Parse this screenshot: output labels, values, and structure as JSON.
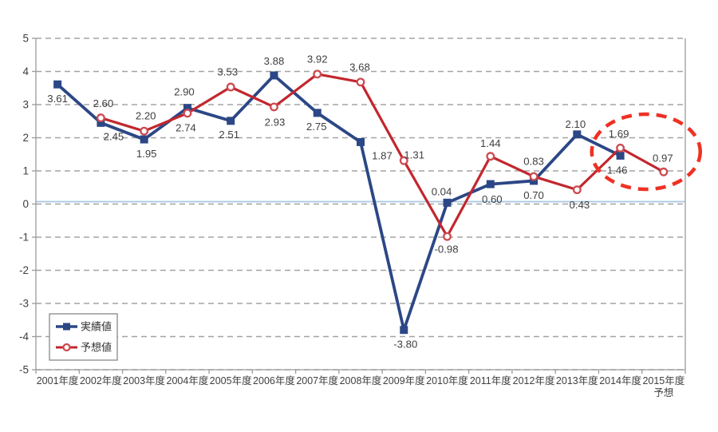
{
  "chart_data": {
    "type": "line",
    "title": "",
    "categories": [
      "2001年度",
      "2002年度",
      "2003年度",
      "2004年度",
      "2005年度",
      "2006年度",
      "2007年度",
      "2008年度",
      "2009年度",
      "2010年度",
      "2011年度",
      "2012年度",
      "2013年度",
      "2014年度",
      "2015年度\n予想"
    ],
    "ylim": [
      -5,
      5
    ],
    "ytick_step": 1,
    "ytick_labels": [
      "5",
      "4",
      "3",
      "2",
      "1",
      "0",
      "-1",
      "-2",
      "-3",
      "-4",
      "-5"
    ],
    "grid": "horizontal-dashed",
    "legend_position": "inside-bottom-left",
    "colors": {
      "actual": "#2c4786",
      "forecast": "#c2272e",
      "forecast_marker_ring": "#cc4a50",
      "zero_line": "#a9c7e6",
      "gridline": "#a3a3a3",
      "axis_border": "#9b9b9b",
      "label_text": "#3f3f3f",
      "highlight_ellipse": "#ee3124"
    },
    "series": [
      {
        "name": "実績値",
        "marker": "filled-square",
        "color_key": "actual",
        "points": [
          {
            "category": "2001年度",
            "value": 3.61,
            "label": "3.61",
            "dx": 0,
            "dy": 18
          },
          {
            "category": "2002年度",
            "value": 2.45,
            "label": "2.45",
            "dx": 16,
            "dy": 17
          },
          {
            "category": "2003年度",
            "value": 1.95,
            "label": "1.95",
            "dx": 3,
            "dy": 18
          },
          {
            "category": "2004年度",
            "value": 2.9,
            "label": "2.90",
            "dx": -4,
            "dy": -20
          },
          {
            "category": "2005年度",
            "value": 2.51,
            "label": "2.51",
            "dx": -2,
            "dy": 17
          },
          {
            "category": "2006年度",
            "value": 3.88,
            "label": "3.88",
            "dx": 0,
            "dy": -18
          },
          {
            "category": "2007年度",
            "value": 2.75,
            "label": "2.75",
            "dx": -1,
            "dy": 17
          },
          {
            "category": "2008年度",
            "value": 1.87,
            "label": "1.87",
            "dx": 27,
            "dy": 17
          },
          {
            "category": "2009年度",
            "value": -3.8,
            "label": "-3.80",
            "dx": 2,
            "dy": 18
          },
          {
            "category": "2010年度",
            "value": 0.04,
            "label": "0.04",
            "dx": -7,
            "dy": -14
          },
          {
            "category": "2011年度",
            "value": 0.6,
            "label": "0.60",
            "dx": 2,
            "dy": 19
          },
          {
            "category": "2012年度",
            "value": 0.7,
            "label": "0.70",
            "dx": 0,
            "dy": 18
          },
          {
            "category": "2013年度",
            "value": 2.1,
            "label": "2.10",
            "dx": -2,
            "dy": -13
          },
          {
            "category": "2014年度",
            "value": 1.46,
            "label": "1.46",
            "dx": -4,
            "dy": 18
          }
        ]
      },
      {
        "name": "予想値",
        "marker": "open-circle",
        "color_key": "forecast",
        "points": [
          {
            "category": "2002年度",
            "value": 2.6,
            "label": "2.60",
            "dx": 3,
            "dy": -18
          },
          {
            "category": "2003年度",
            "value": 2.2,
            "label": "2.20",
            "dx": 2,
            "dy": -19
          },
          {
            "category": "2004年度",
            "value": 2.74,
            "label": "2.74",
            "dx": -2,
            "dy": 18
          },
          {
            "category": "2005年度",
            "value": 3.53,
            "label": "3.53",
            "dx": -4,
            "dy": -19
          },
          {
            "category": "2006年度",
            "value": 2.93,
            "label": "2.93",
            "dx": 1,
            "dy": 19
          },
          {
            "category": "2007年度",
            "value": 3.92,
            "label": "3.92",
            "dx": 0,
            "dy": -19
          },
          {
            "category": "2008年度",
            "value": 3.68,
            "label": "3.68",
            "dx": -1,
            "dy": -19
          },
          {
            "category": "2009年度",
            "value": 1.31,
            "label": "1.31",
            "dx": 13,
            "dy": -7
          },
          {
            "category": "2010年度",
            "value": -0.98,
            "label": "-0.98",
            "dx": -1,
            "dy": 16
          },
          {
            "category": "2011年度",
            "value": 1.44,
            "label": "1.44",
            "dx": 0,
            "dy": -16
          },
          {
            "category": "2012年度",
            "value": 0.83,
            "label": "0.83",
            "dx": 0,
            "dy": -19
          },
          {
            "category": "2013年度",
            "value": 0.43,
            "label": "0.43",
            "dx": 3,
            "dy": 19
          },
          {
            "category": "2014年度",
            "value": 1.69,
            "label": "1.69",
            "dx": -2,
            "dy": -18
          },
          {
            "category": "2015年度\n予想",
            "value": 0.97,
            "label": "0.97",
            "dx": -1,
            "dy": -17
          }
        ]
      }
    ],
    "annotations": [
      {
        "type": "dashed-ellipse",
        "purpose": "highlights 2014 and 2015 forecast points",
        "categories": [
          "2014年度",
          "2015年度\n予想"
        ],
        "color_key": "highlight_ellipse"
      }
    ]
  },
  "legend": {
    "items": [
      {
        "label": "実績値",
        "series": 0
      },
      {
        "label": "予想値",
        "series": 1
      }
    ]
  }
}
